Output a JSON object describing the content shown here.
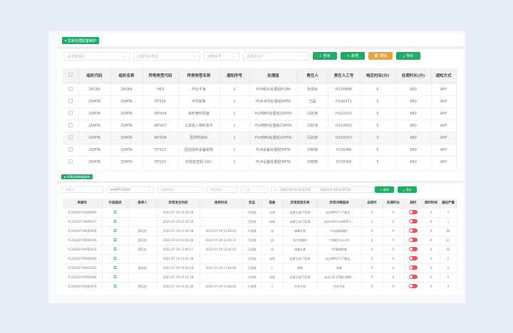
{
  "top": {
    "tag": "异常处理配置维护",
    "filters": [
      "请选择组织",
      "选择异常类型",
      "通知序号",
      "选择责任人"
    ],
    "buttons": {
      "query": "查询",
      "add": "新增",
      "delete": "删除",
      "export": "导出"
    },
    "columns": [
      "组织代码",
      "组织名称",
      "异常类型代码",
      "异常类型名称",
      "通知序号",
      "处理组",
      "责任人",
      "责任人工号",
      "响应时间(分)",
      "处理时长(分)",
      "通知方式"
    ],
    "rows": [
      [
        "2PCBA",
        "2PCBA",
        "HE3",
        "作业不良",
        "1",
        "PU4组长处理组PCBA",
        "张俊余",
        "H1304NE",
        "5",
        "680",
        "APP"
      ],
      [
        "2SMTA",
        "2SMTA",
        "ET014",
        "ATE故障",
        "1",
        "PU4-ATE处理组SMTA",
        "王磊",
        "H190471",
        "5",
        "680",
        "APP"
      ],
      [
        "2SMTA",
        "2SMTA",
        "WT004",
        "来料宽料短装",
        "1",
        "PU4物料处理组2SMTA",
        "闫剑涛",
        "H210DY2",
        "5",
        "680",
        "APP"
      ],
      [
        "2SMTA",
        "2SMTA",
        "WT007",
        "工单投入物料未齐",
        "1",
        "PU4物料处理组2SMTA",
        "闫剑涛",
        "H210DY2",
        "5",
        "680",
        "APP"
      ],
      [
        "2SMTA",
        "2SMTA",
        "WT006",
        "原材料缺料",
        "1",
        "PU4物料处理组2SMTA",
        "闫剑涛",
        "H210DY2",
        "5",
        "680",
        "APP"
      ],
      [
        "2SMTA",
        "2SMTA",
        "ET023",
        "回流焊炉设备故障",
        "1",
        "PU4设备处理组SMTA",
        "刘晓英",
        "H21EAW",
        "5",
        "680",
        "APP"
      ],
      [
        "2SMTA",
        "2SMTA",
        "ET020",
        "炉前检查机-S&C",
        "1",
        "PU4设备处理组SMTA",
        "刘晓英",
        "H21EAW",
        "5",
        "680",
        "APP"
      ]
    ]
  },
  "bottom": {
    "tag": "异常处理单据查询",
    "filters": [
      "单据号",
      "2#SMT-2ASSY",
      "选择处理人",
      "单据状态",
      "厂区"
    ],
    "date_from": "2022-07-11 12:57:22",
    "date_sep": "-",
    "date_to": "2022-07-19 12:57:22",
    "buttons": {
      "query": "查询",
      "export": "导出"
    },
    "columns": [
      "单据号",
      "升级描述",
      "接单人",
      "异常发生时间",
      "接单时间",
      "状态",
      "现象",
      "异常类型名称",
      "异常详情描述",
      "总耗时",
      "处理时长",
      "超时",
      "超时时间",
      "通知严重"
    ],
    "rows": [
      [
        "YC20220719000460",
        "",
        "",
        "2022-07-19 12:34:18",
        "",
        "已完成",
        "未知",
        "关键工站CT异常",
        "站点INPUT CT超出...",
        "0",
        "0",
        "",
        "0",
        "7"
      ],
      [
        "YC20220719000457",
        "",
        "",
        "2022-07-19 12:16:18",
        "",
        "已完成",
        "未知",
        "关键工站CT异常",
        "站点LOCK_LOWER C...",
        "0",
        "0",
        "",
        "0",
        "1"
      ],
      [
        "YC20220719000456",
        "",
        "薛石柱",
        "2022-07-19 11:56:18",
        "2022-07-19 12:09:33",
        "已处理",
        "设",
        "锡膏异常",
        "Ising钢网堵孔",
        "0",
        "0",
        "",
        "0",
        "34"
      ],
      [
        "YC20220719000430",
        "",
        "薛石柱",
        "2022-07-19 11:54:18",
        "2022-07-19 12:40:15",
        "已处理",
        "机",
        "贴片机抛料",
        "产线贴片xx卡死",
        "0",
        "0",
        "",
        "0",
        "21"
      ],
      [
        "YC20220719000425",
        "",
        "薛石柱",
        "2022-07-19 11:46:17",
        "2022-07-19 12:41:16",
        "已处理",
        "设",
        "锡膏异常",
        "AF钢网脏堵",
        "0",
        "0",
        "",
        "0",
        "16"
      ],
      [
        "YC20220719000400",
        "",
        "",
        "2022-07-19 11:01:18",
        "",
        "已完成",
        "未知",
        "关键工站CT异常",
        "站点INPUT CT超出...",
        "0",
        "0",
        "",
        "0",
        "2"
      ],
      [
        "YC20220719000392",
        "",
        "薛石柱",
        "2022-07-19 10:56:18",
        "2022-07-19 11:08:39",
        "已处理",
        "人",
        "原装",
        "原装",
        "0",
        "0",
        "",
        "0",
        "3"
      ],
      [
        "YC20220719000384",
        "",
        "",
        "2022-07-19 10:54:18",
        "",
        "已完成",
        "未知",
        "关键工站CT异常",
        "站点LAT CT超出预期...",
        "0",
        "0",
        "",
        "0",
        "2"
      ],
      [
        "YC20220719000376",
        "",
        "薛石柱",
        "2022-07-19 10:41:18",
        "2022-07-19 11:08:26",
        "已处理",
        "人",
        "作业不良",
        "作业不良",
        "0",
        "0",
        "",
        "0",
        "4"
      ]
    ]
  },
  "colors": {
    "green": "#1fad66",
    "orange": "#e8a33a",
    "toggle_red": "#f05454"
  }
}
